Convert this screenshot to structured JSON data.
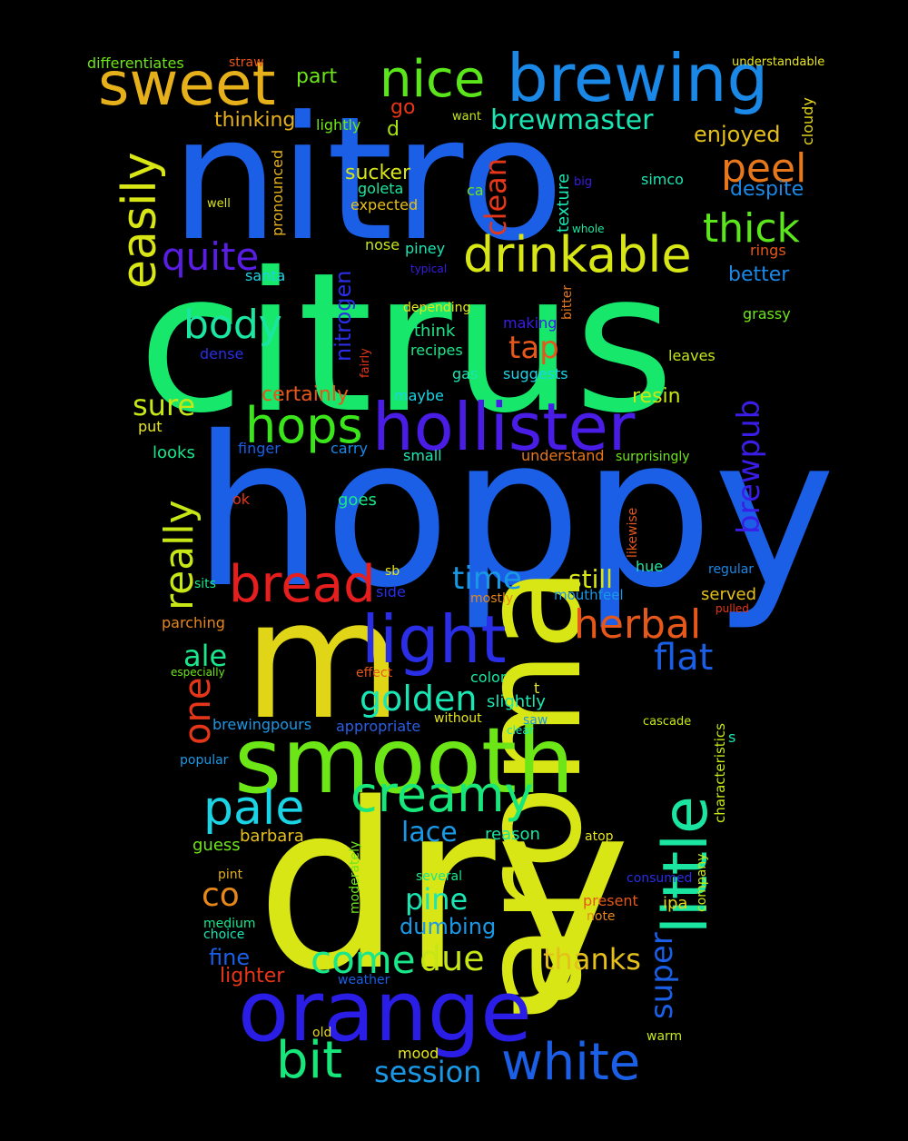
{
  "background": "#000000",
  "words": [
    {
      "text": "citrus",
      "color": "#17e86b"
    },
    {
      "text": "hoppy",
      "color": "#1a5fe6"
    },
    {
      "text": "dry",
      "color": "#d8e616"
    },
    {
      "text": "nitro",
      "color": "#1a5fe6"
    },
    {
      "text": "aroma",
      "color": "#d8e616"
    },
    {
      "text": "m",
      "color": "#e0d617"
    },
    {
      "text": "smooth",
      "color": "#6de618"
    },
    {
      "text": "orange",
      "color": "#2a1de6"
    },
    {
      "text": "hollister",
      "color": "#4a1de6"
    },
    {
      "text": "brewing",
      "color": "#1a88e6"
    },
    {
      "text": "little",
      "color": "#1ae6a2"
    },
    {
      "text": "light",
      "color": "#2a2ee6"
    },
    {
      "text": "sweet",
      "color": "#e6b01a"
    },
    {
      "text": "drinkable",
      "color": "#d8e616"
    },
    {
      "text": "creamy",
      "color": "#17e67a"
    },
    {
      "text": "bread",
      "color": "#e61e1e"
    },
    {
      "text": "white",
      "color": "#1a5fe6"
    },
    {
      "text": "nice",
      "color": "#5ae61a"
    },
    {
      "text": "hops",
      "color": "#3ae61a"
    },
    {
      "text": "bit",
      "color": "#17e67a"
    },
    {
      "text": "pale",
      "color": "#1ad4e6"
    },
    {
      "text": "easily",
      "color": "#d8e616"
    },
    {
      "text": "herbal",
      "color": "#e6571a"
    },
    {
      "text": "quite",
      "color": "#5a1de6"
    },
    {
      "text": "body",
      "color": "#1ae6a2"
    },
    {
      "text": "thick",
      "color": "#5ae61a"
    },
    {
      "text": "peel",
      "color": "#e6771a"
    },
    {
      "text": "really",
      "color": "#c6e616"
    },
    {
      "text": "come",
      "color": "#1ae68a"
    },
    {
      "text": "golden",
      "color": "#1ae6b4"
    },
    {
      "text": "flat",
      "color": "#1a5fe6"
    },
    {
      "text": "time",
      "color": "#1a98e6"
    },
    {
      "text": "one",
      "color": "#e6361a"
    },
    {
      "text": "session",
      "color": "#1a98e6"
    },
    {
      "text": "due",
      "color": "#c6e616"
    },
    {
      "text": "super",
      "color": "#1a5fe6"
    },
    {
      "text": "brewpub",
      "color": "#3a1de6"
    },
    {
      "text": "tap",
      "color": "#e6571a"
    },
    {
      "text": "clean",
      "color": "#e6361a"
    },
    {
      "text": "brewmaster",
      "color": "#1ae6b4"
    },
    {
      "text": "thanks",
      "color": "#e6c01a"
    },
    {
      "text": "pine",
      "color": "#1ae6b4"
    },
    {
      "text": "co",
      "color": "#e6871a"
    },
    {
      "text": "sure",
      "color": "#c6e616"
    },
    {
      "text": "ale",
      "color": "#1ae68a"
    },
    {
      "text": "lace",
      "color": "#1a98e6"
    },
    {
      "text": "still",
      "color": "#d8e616"
    },
    {
      "text": "dumbing",
      "color": "#1a98e6"
    },
    {
      "text": "fine",
      "color": "#1a5fe6"
    },
    {
      "text": "despite",
      "color": "#1a88e6"
    },
    {
      "text": "enjoyed",
      "color": "#e6c01a"
    },
    {
      "text": "nitrogen",
      "color": "#2a2ee6"
    },
    {
      "text": "certainly",
      "color": "#e6571a"
    },
    {
      "text": "resin",
      "color": "#c6e616"
    },
    {
      "text": "better",
      "color": "#1a88e6"
    },
    {
      "text": "sucker",
      "color": "#d8e616"
    },
    {
      "text": "thinking",
      "color": "#e6b01a"
    },
    {
      "text": "lighter",
      "color": "#e6361a"
    },
    {
      "text": "part",
      "color": "#6de618"
    },
    {
      "text": "go",
      "color": "#e6361a"
    },
    {
      "text": "d",
      "color": "#a6e616"
    },
    {
      "text": "texture",
      "color": "#1ae6b4"
    },
    {
      "text": "brewingpours",
      "color": "#1a98e6"
    },
    {
      "text": "lightly",
      "color": "#6de618"
    },
    {
      "text": "looks",
      "color": "#1ae68a"
    },
    {
      "text": "finger",
      "color": "#1a5fe6"
    },
    {
      "text": "carry",
      "color": "#1a88e6"
    },
    {
      "text": "understand",
      "color": "#e6771a"
    },
    {
      "text": "barbara",
      "color": "#e6c01a"
    },
    {
      "text": "served",
      "color": "#e6c01a"
    },
    {
      "text": "expected",
      "color": "#e6c01a"
    },
    {
      "text": "goleta",
      "color": "#1ae6a2"
    },
    {
      "text": "ca",
      "color": "#6de618"
    },
    {
      "text": "santa",
      "color": "#1ad4e6"
    },
    {
      "text": "nose",
      "color": "#c6e616"
    },
    {
      "text": "piney",
      "color": "#1ae6b4"
    },
    {
      "text": "think",
      "color": "#1ae68a"
    },
    {
      "text": "recipes",
      "color": "#1ae68a"
    },
    {
      "text": "depending",
      "color": "#e6e61a"
    },
    {
      "text": "making",
      "color": "#3a1de6"
    },
    {
      "text": "suggests",
      "color": "#1ad4e6"
    },
    {
      "text": "gas",
      "color": "#1ae6b4"
    },
    {
      "text": "maybe",
      "color": "#1ad4e6"
    },
    {
      "text": "small",
      "color": "#1ae6b4"
    },
    {
      "text": "goes",
      "color": "#1ae68a"
    },
    {
      "text": "cloudy",
      "color": "#e6d61a"
    },
    {
      "text": "simco",
      "color": "#1ae6b4"
    },
    {
      "text": "rings",
      "color": "#e6571a"
    },
    {
      "text": "grassy",
      "color": "#6de618"
    },
    {
      "text": "leaves",
      "color": "#c6e616"
    },
    {
      "text": "pronounced",
      "color": "#e6b01a"
    },
    {
      "text": "dense",
      "color": "#2a2ee6"
    },
    {
      "text": "put",
      "color": "#e6e61a"
    },
    {
      "text": "ok",
      "color": "#e6361a"
    },
    {
      "text": "sits",
      "color": "#1ae68a"
    },
    {
      "text": "parching",
      "color": "#e6871a"
    },
    {
      "text": "especially",
      "color": "#6de618"
    },
    {
      "text": "effect",
      "color": "#e6571a"
    },
    {
      "text": "color",
      "color": "#1ae6a2"
    },
    {
      "text": "slightly",
      "color": "#1ae6b4"
    },
    {
      "text": "t",
      "color": "#e6e61a"
    },
    {
      "text": "appropriate",
      "color": "#2a5ee6"
    },
    {
      "text": "without",
      "color": "#e6e61a"
    },
    {
      "text": "saw",
      "color": "#1a98e6"
    },
    {
      "text": "clear",
      "color": "#1ae6b4"
    },
    {
      "text": "cascade",
      "color": "#c6e616"
    },
    {
      "text": "characteristics",
      "color": "#c6e616"
    },
    {
      "text": "s",
      "color": "#1ae6b4"
    },
    {
      "text": "popular",
      "color": "#1a98e6"
    },
    {
      "text": "reason",
      "color": "#1ae6a2"
    },
    {
      "text": "atop",
      "color": "#e6e61a"
    },
    {
      "text": "guess",
      "color": "#6de618"
    },
    {
      "text": "moderately",
      "color": "#6de618"
    },
    {
      "text": "pint",
      "color": "#e6b01a"
    },
    {
      "text": "several",
      "color": "#1ae68a"
    },
    {
      "text": "consumed",
      "color": "#2a2ee6"
    },
    {
      "text": "company",
      "color": "#c6e616"
    },
    {
      "text": "present",
      "color": "#e6571a"
    },
    {
      "text": "ipa",
      "color": "#e6d61a"
    },
    {
      "text": "note",
      "color": "#e6871a"
    },
    {
      "text": "medium",
      "color": "#1ae68a"
    },
    {
      "text": "choice",
      "color": "#1ae6b4"
    },
    {
      "text": "weather",
      "color": "#1a5fe6"
    },
    {
      "text": "old",
      "color": "#e6d61a"
    },
    {
      "text": "mood",
      "color": "#e6e61a"
    },
    {
      "text": "warm",
      "color": "#c6e616"
    },
    {
      "text": "differentiates",
      "color": "#6de618"
    },
    {
      "text": "straw",
      "color": "#e6571a"
    },
    {
      "text": "understandable",
      "color": "#e6e61a"
    },
    {
      "text": "want",
      "color": "#c6e616"
    },
    {
      "text": "well",
      "color": "#d8e616"
    },
    {
      "text": "big",
      "color": "#3a1de6"
    },
    {
      "text": "whole",
      "color": "#1ae6a2"
    },
    {
      "text": "typical",
      "color": "#3a1de6"
    },
    {
      "text": "bitter",
      "color": "#e6771a"
    },
    {
      "text": "fairly",
      "color": "#e6361a"
    },
    {
      "text": "surprisingly",
      "color": "#6de618"
    },
    {
      "text": "likewise",
      "color": "#e6571a"
    },
    {
      "text": "hue",
      "color": "#1ae6a2"
    },
    {
      "text": "regular",
      "color": "#1a88e6"
    },
    {
      "text": "pulled",
      "color": "#e6361a"
    },
    {
      "text": "side",
      "color": "#2a2ee6"
    },
    {
      "text": "sb",
      "color": "#e6e61a"
    },
    {
      "text": "mostly",
      "color": "#e6871a"
    },
    {
      "text": "mouthfeel",
      "color": "#1a98e6"
    }
  ]
}
